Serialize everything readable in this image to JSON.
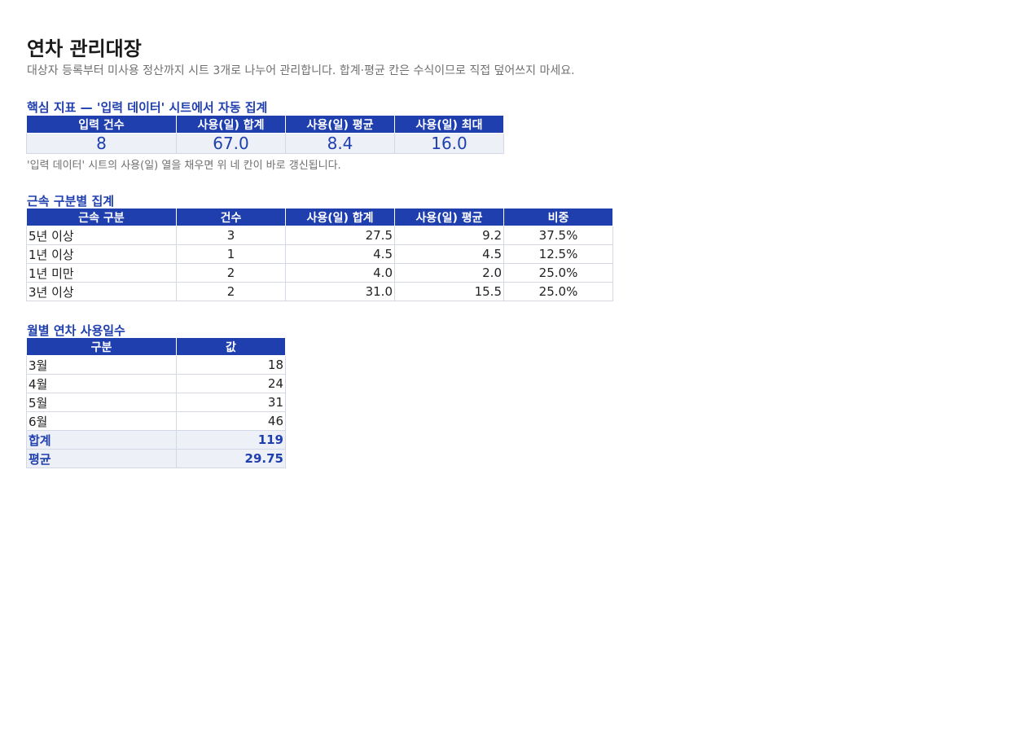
{
  "header": {
    "title": "연차 관리대장",
    "subtitle": "대상자 등록부터 미사용 정산까지 시트 3개로 나누어 관리합니다. 합계·평균 칸은 수식이므로 직접 덮어쓰지 마세요."
  },
  "kpi": {
    "heading": "핵심 지표 — '입력 데이터' 시트에서 자동 집계",
    "columns": [
      "입력 건수",
      "사용(일) 합계",
      "사용(일) 평균",
      "사용(일) 최대"
    ],
    "values": [
      "8",
      "67.0",
      "8.4",
      "16.0"
    ],
    "note": "'입력 데이터' 시트의 사용(일) 열을 채우면 위 네 칸이 바로 갱신됩니다."
  },
  "tenure": {
    "heading": "근속 구분별 집계",
    "columns": [
      "근속 구분",
      "건수",
      "사용(일) 합계",
      "사용(일) 평균",
      "비중"
    ],
    "rows": [
      [
        "5년 이상",
        "3",
        "27.5",
        "9.2",
        "37.5%"
      ],
      [
        "1년 이상",
        "1",
        "4.5",
        "4.5",
        "12.5%"
      ],
      [
        "1년 미만",
        "2",
        "4.0",
        "2.0",
        "25.0%"
      ],
      [
        "3년 이상",
        "2",
        "31.0",
        "15.5",
        "25.0%"
      ]
    ]
  },
  "monthly": {
    "heading": "월별 연차 사용일수",
    "columns": [
      "구분",
      "값"
    ],
    "rows": [
      [
        "3월",
        "18"
      ],
      [
        "4월",
        "24"
      ],
      [
        "5월",
        "31"
      ],
      [
        "6월",
        "46"
      ]
    ],
    "summary": [
      [
        "합계",
        "119"
      ],
      [
        "평균",
        "29.75"
      ]
    ]
  }
}
